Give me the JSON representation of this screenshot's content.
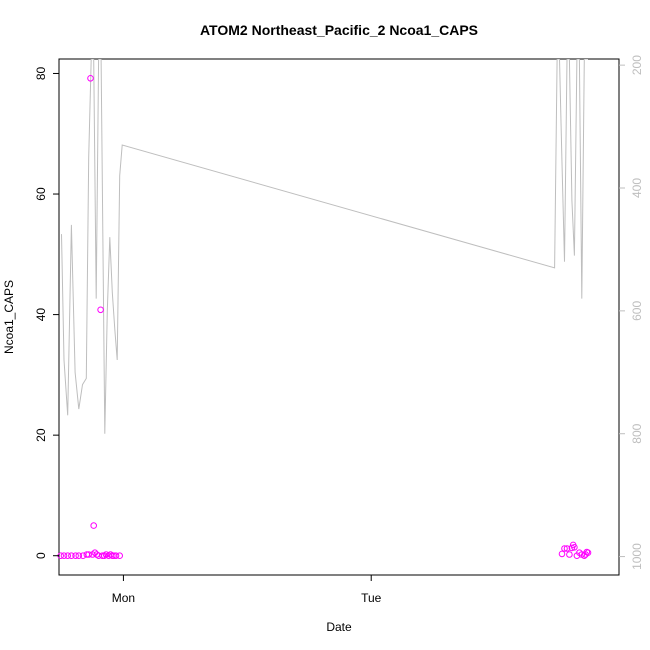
{
  "chart_data": {
    "type": "scatter",
    "title": "ATOM2 Northeast_Pacific_2 Ncoa1_CAPS",
    "xlabel": "Date",
    "ylabel": "Ncoa1_CAPS",
    "x_ticks": [
      "Mon",
      "Tue"
    ],
    "xlim": [
      -0.26,
      2.0
    ],
    "ylim": [
      -3.2,
      82.4
    ],
    "y_ticks": [
      "0",
      "20",
      "40",
      "60",
      "80"
    ],
    "y_tick_values": [
      0,
      20,
      40,
      60,
      80
    ],
    "y2lim": [
      1030,
      190
    ],
    "y2_ticks": [
      "200",
      "400",
      "600",
      "800",
      "1000"
    ],
    "y2_tick_values": [
      200,
      400,
      600,
      800,
      1000
    ],
    "grid": false,
    "legend": "none",
    "colors": {
      "points": "#ff00ff",
      "line": "#bebebe",
      "axes": "#000000",
      "secondary_axis": "#bebebe"
    },
    "series": [
      {
        "axis": "left",
        "mark": "point",
        "points": [
          [
            -0.253,
            0
          ],
          [
            -0.24,
            0
          ],
          [
            -0.225,
            0
          ],
          [
            -0.21,
            0
          ],
          [
            -0.193,
            0
          ],
          [
            -0.18,
            0
          ],
          [
            -0.163,
            0
          ],
          [
            -0.148,
            0.2
          ],
          [
            -0.14,
            0.2
          ],
          [
            -0.133,
            79.2
          ],
          [
            -0.125,
            0.2
          ],
          [
            -0.12,
            5.0
          ],
          [
            -0.115,
            0.5
          ],
          [
            -0.108,
            0.2
          ],
          [
            -0.1,
            0
          ],
          [
            -0.092,
            40.8
          ],
          [
            -0.085,
            0
          ],
          [
            -0.077,
            0
          ],
          [
            -0.07,
            0.2
          ],
          [
            -0.06,
            0
          ],
          [
            -0.052,
            0.2
          ],
          [
            -0.045,
            0
          ],
          [
            -0.038,
            0
          ],
          [
            -0.03,
            0
          ],
          [
            -0.015,
            0
          ],
          [
            1.77,
            0.3
          ],
          [
            1.78,
            1.2
          ],
          [
            1.79,
            1.2
          ],
          [
            1.8,
            0.2
          ],
          [
            1.81,
            1.3
          ],
          [
            1.815,
            1.8
          ],
          [
            1.82,
            1.4
          ],
          [
            1.83,
            0
          ],
          [
            1.84,
            0.5
          ],
          [
            1.85,
            0.2
          ],
          [
            1.86,
            0
          ],
          [
            1.865,
            0.2
          ],
          [
            1.87,
            0.6
          ],
          [
            1.875,
            0.5
          ]
        ]
      },
      {
        "axis": "right",
        "mark": "line",
        "points": [
          [
            -0.25,
            475
          ],
          [
            -0.24,
            680
          ],
          [
            -0.225,
            770
          ],
          [
            -0.21,
            460
          ],
          [
            -0.195,
            700
          ],
          [
            -0.18,
            760
          ],
          [
            -0.165,
            720
          ],
          [
            -0.15,
            710
          ],
          [
            -0.14,
            350
          ],
          [
            -0.13,
            190
          ],
          [
            -0.12,
            190
          ],
          [
            -0.11,
            580
          ],
          [
            -0.1,
            190
          ],
          [
            -0.09,
            190
          ],
          [
            -0.075,
            800
          ],
          [
            -0.065,
            600
          ],
          [
            -0.055,
            480
          ],
          [
            -0.045,
            570
          ],
          [
            -0.035,
            630
          ],
          [
            -0.025,
            680
          ],
          [
            -0.015,
            380
          ],
          [
            -0.005,
            330
          ],
          [
            1.74,
            530
          ],
          [
            1.75,
            190
          ],
          [
            1.76,
            190
          ],
          [
            1.77,
            360
          ],
          [
            1.78,
            520
          ],
          [
            1.79,
            190
          ],
          [
            1.8,
            190
          ],
          [
            1.81,
            420
          ],
          [
            1.82,
            510
          ],
          [
            1.83,
            190
          ],
          [
            1.84,
            190
          ],
          [
            1.85,
            580
          ],
          [
            1.86,
            190
          ],
          [
            1.875,
            190
          ]
        ]
      }
    ]
  }
}
